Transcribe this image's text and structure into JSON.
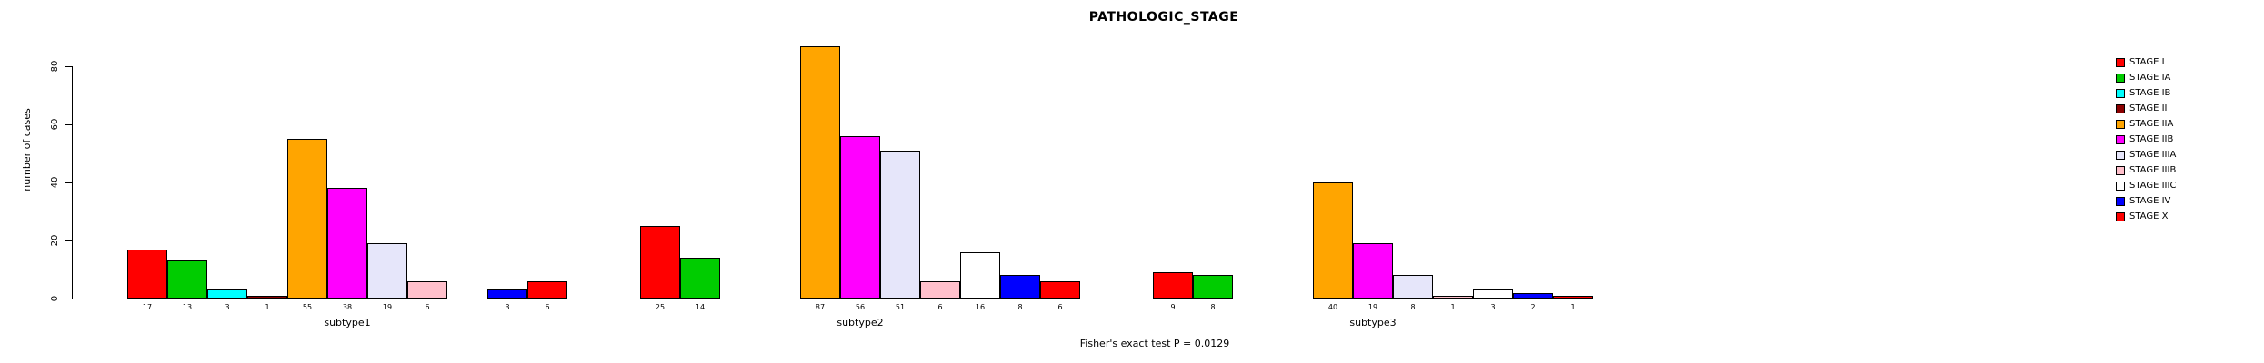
{
  "chart_data": {
    "type": "bar",
    "title": "PATHOLOGIC_STAGE",
    "ylabel": "number of cases",
    "annotation": "Fisher's exact test P = 0.0129",
    "yticks": [
      0,
      20,
      40,
      60,
      80
    ],
    "ylim": [
      0,
      90
    ],
    "grid": false,
    "legend_position": "right",
    "bar_value_labels": true,
    "categories": [
      "subtype1",
      "subtype2",
      "subtype3"
    ],
    "series": [
      {
        "name": "STAGE I",
        "color": "#FF0000",
        "values": [
          17,
          25,
          9
        ]
      },
      {
        "name": "STAGE IA",
        "color": "#00CC00",
        "values": [
          13,
          14,
          8
        ]
      },
      {
        "name": "STAGE IB",
        "color": "#00FFFF",
        "values": [
          3,
          0,
          0
        ]
      },
      {
        "name": "STAGE II",
        "color": "#8B0000",
        "values": [
          1,
          0,
          0
        ]
      },
      {
        "name": "STAGE IIA",
        "color": "#FFA500",
        "values": [
          55,
          87,
          40
        ]
      },
      {
        "name": "STAGE IIB",
        "color": "#FF00FF",
        "values": [
          38,
          56,
          19
        ]
      },
      {
        "name": "STAGE IIIA",
        "color": "#E6E6FA",
        "values": [
          19,
          51,
          8
        ]
      },
      {
        "name": "STAGE IIIB",
        "color": "#FFC0CB",
        "values": [
          6,
          6,
          1
        ]
      },
      {
        "name": "STAGE IIIC",
        "color": "#FFFFFF",
        "values": [
          0,
          16,
          3
        ]
      },
      {
        "name": "STAGE IV",
        "color": "#0000FF",
        "values": [
          3,
          8,
          2
        ]
      },
      {
        "name": "STAGE X",
        "color": "#FF0000",
        "values": [
          6,
          6,
          1
        ]
      }
    ]
  }
}
